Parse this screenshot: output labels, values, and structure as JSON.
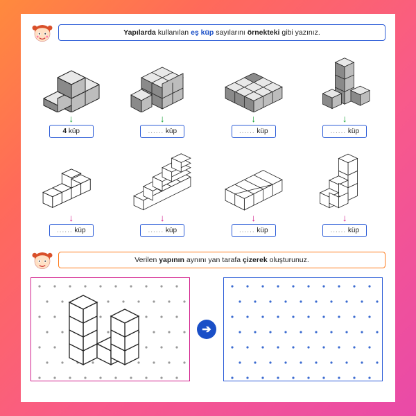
{
  "instr1_parts": [
    "Yapılarda",
    " kullanılan ",
    "eş küp",
    " sayılarını ",
    "örnekteki",
    " gibi yazınız."
  ],
  "instr2_parts": [
    "Verilen ",
    "yapının",
    " aynını yan tarafa ",
    "çizerek",
    " oluşturunuz."
  ],
  "unit": "küp",
  "answers_row1": [
    "4",
    "......",
    "......",
    "......"
  ],
  "answers_row2": [
    "......",
    "......",
    "......",
    "......"
  ],
  "colors": {
    "border_blue": "#2a5bd7",
    "border_orange": "#ff7a1a",
    "arrow_green": "#0a9c2c",
    "arrow_magenta": "#d11a8a",
    "circle_blue": "#1a4fc7",
    "dot_grey": "#999999",
    "dot_blue": "#3a6ad0",
    "cube_light": "#e8e8e8",
    "cube_mid": "#bdbdbd",
    "cube_dark": "#8a8a8a",
    "cube_stroke": "#222222"
  },
  "iso_dot_spacing": 22
}
